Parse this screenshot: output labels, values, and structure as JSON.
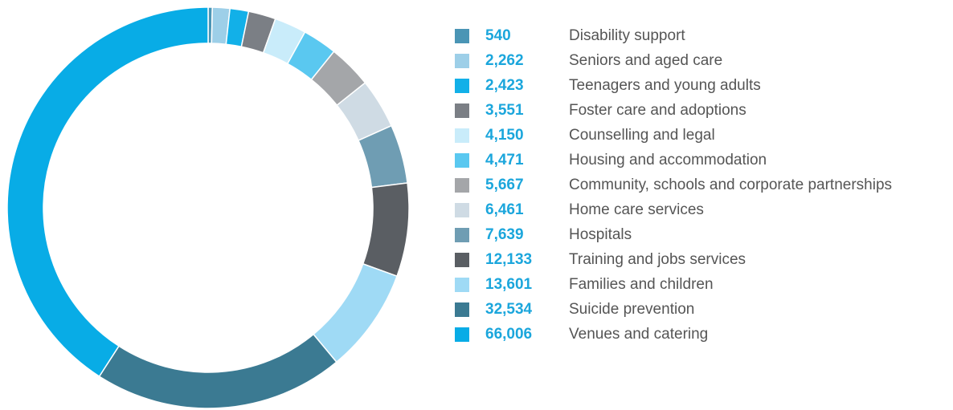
{
  "chart_data": {
    "type": "donut",
    "start": "12 o'clock, clockwise",
    "legend_position": "right",
    "series": [
      {
        "label": "Disability support",
        "display": "540",
        "value": 540,
        "color": "#4a95b5"
      },
      {
        "label": "Seniors and aged care",
        "display": "2,262",
        "value": 2262,
        "color": "#9dcfe8"
      },
      {
        "label": "Teenagers and young adults",
        "display": "2,423",
        "value": 2423,
        "color": "#12b0e8"
      },
      {
        "label": "Foster care and adoptions",
        "display": "3,551",
        "value": 3551,
        "color": "#7b7f85"
      },
      {
        "label": "Counselling and legal",
        "display": "4,150",
        "value": 4150,
        "color": "#c9ecfa"
      },
      {
        "label": "Housing and accommodation",
        "display": "4,471",
        "value": 4471,
        "color": "#5ac8f0"
      },
      {
        "label": "Community, schools and corporate partnerships",
        "display": "5,667",
        "value": 5667,
        "color": "#a4a6a9"
      },
      {
        "label": "Home care services",
        "display": "6,461",
        "value": 6461,
        "color": "#cfdbe4"
      },
      {
        "label": "Hospitals",
        "display": "7,639",
        "value": 7639,
        "color": "#6f9db3"
      },
      {
        "label": "Training and jobs services",
        "display": "12,133",
        "value": 12133,
        "color": "#5a5e63"
      },
      {
        "label": "Families and children",
        "display": "13,601",
        "value": 13601,
        "color": "#9fdaf5"
      },
      {
        "label": "Suicide prevention",
        "display": "32,534",
        "value": 32534,
        "color": "#3b7a92"
      },
      {
        "label": "Venues and catering",
        "display": "66,006",
        "value": 66006,
        "color": "#08ace6"
      }
    ]
  }
}
